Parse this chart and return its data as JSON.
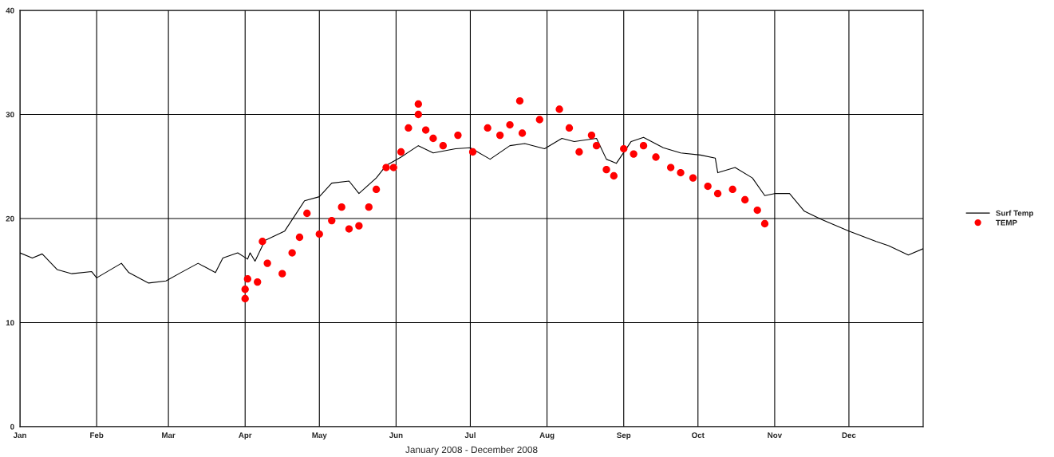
{
  "chart_data": {
    "type": "line",
    "xlabel": "January 2008 - December 2008",
    "xlim": [
      "2008-01-01",
      "2008-12-31"
    ],
    "xticks": [
      {
        "value": "2008-01-01",
        "label": "Jan"
      },
      {
        "value": "2008-02-01",
        "label": "Feb"
      },
      {
        "value": "2008-03-01",
        "label": "Mar"
      },
      {
        "value": "2008-04-01",
        "label": "Apr"
      },
      {
        "value": "2008-05-01",
        "label": "May"
      },
      {
        "value": "2008-06-01",
        "label": "Jun"
      },
      {
        "value": "2008-07-01",
        "label": "Jul"
      },
      {
        "value": "2008-08-01",
        "label": "Aug"
      },
      {
        "value": "2008-09-01",
        "label": "Sep"
      },
      {
        "value": "2008-10-01",
        "label": "Oct"
      },
      {
        "value": "2008-11-01",
        "label": "Nov"
      },
      {
        "value": "2008-12-01",
        "label": "Dec"
      }
    ],
    "ylim": [
      0,
      40
    ],
    "yticks": [
      0,
      10,
      20,
      30,
      40
    ],
    "grid": true,
    "legend": "right",
    "series": [
      {
        "name": "Surf Temp",
        "color": "#000000",
        "marker": "none",
        "line_style": "solid",
        "x": [
          "2008-01-01",
          "2008-01-06",
          "2008-01-10",
          "2008-01-16",
          "2008-01-22",
          "2008-01-30",
          "2008-02-01",
          "2008-02-11",
          "2008-02-14",
          "2008-02-22",
          "2008-02-29",
          "2008-03-06",
          "2008-03-13",
          "2008-03-20",
          "2008-03-23",
          "2008-03-29",
          "2008-04-02",
          "2008-04-03",
          "2008-04-05",
          "2008-04-09",
          "2008-04-17",
          "2008-04-25",
          "2008-05-01",
          "2008-05-06",
          "2008-05-13",
          "2008-05-17",
          "2008-05-24",
          "2008-05-28",
          "2008-06-03",
          "2008-06-10",
          "2008-06-16",
          "2008-06-25",
          "2008-07-01",
          "2008-07-09",
          "2008-07-17",
          "2008-07-23",
          "2008-07-31",
          "2008-08-07",
          "2008-08-12",
          "2008-08-21",
          "2008-08-25",
          "2008-08-29",
          "2008-09-04",
          "2008-09-09",
          "2008-09-17",
          "2008-09-24",
          "2008-10-02",
          "2008-10-08",
          "2008-10-09",
          "2008-10-16",
          "2008-10-23",
          "2008-10-28",
          "2008-11-01",
          "2008-11-07",
          "2008-11-13",
          "2008-11-20",
          "2008-12-01",
          "2008-12-12",
          "2008-12-17",
          "2008-12-25",
          "2008-12-31"
        ],
        "values": [
          16.7,
          16.2,
          16.6,
          15.1,
          14.7,
          14.9,
          14.3,
          15.7,
          14.8,
          13.8,
          14.0,
          14.8,
          15.7,
          14.8,
          16.2,
          16.7,
          16.1,
          16.7,
          15.9,
          17.9,
          18.8,
          21.7,
          22.1,
          23.4,
          23.6,
          22.4,
          23.9,
          25.1,
          25.9,
          27.0,
          26.3,
          26.7,
          26.8,
          25.7,
          27.0,
          27.2,
          26.7,
          27.7,
          27.4,
          27.7,
          25.7,
          25.3,
          27.4,
          27.8,
          26.8,
          26.3,
          26.1,
          25.8,
          24.4,
          24.9,
          23.9,
          22.2,
          22.4,
          22.4,
          20.7,
          19.9,
          18.8,
          17.8,
          17.4,
          16.5,
          17.1
        ]
      },
      {
        "name": "TEMP",
        "type": "scatter",
        "color": "#ff0000",
        "marker": "circle",
        "x": [
          "2008-04-01",
          "2008-04-01",
          "2008-04-02",
          "2008-04-06",
          "2008-04-08",
          "2008-04-10",
          "2008-04-16",
          "2008-04-20",
          "2008-04-23",
          "2008-04-26",
          "2008-05-01",
          "2008-05-06",
          "2008-05-10",
          "2008-05-13",
          "2008-05-17",
          "2008-05-21",
          "2008-05-24",
          "2008-05-28",
          "2008-05-31",
          "2008-06-03",
          "2008-06-06",
          "2008-06-10",
          "2008-06-10",
          "2008-06-13",
          "2008-06-16",
          "2008-06-20",
          "2008-06-26",
          "2008-07-02",
          "2008-07-08",
          "2008-07-13",
          "2008-07-17",
          "2008-07-21",
          "2008-07-22",
          "2008-07-29",
          "2008-08-06",
          "2008-08-10",
          "2008-08-14",
          "2008-08-19",
          "2008-08-21",
          "2008-08-25",
          "2008-08-28",
          "2008-09-01",
          "2008-09-05",
          "2008-09-09",
          "2008-09-14",
          "2008-09-20",
          "2008-09-24",
          "2008-09-29",
          "2008-10-05",
          "2008-10-09",
          "2008-10-15",
          "2008-10-20",
          "2008-10-25",
          "2008-10-28"
        ],
        "values": [
          12.3,
          13.2,
          14.2,
          13.9,
          17.8,
          15.7,
          14.7,
          16.7,
          18.2,
          20.5,
          18.5,
          19.8,
          21.1,
          19.0,
          19.3,
          21.1,
          22.8,
          24.9,
          24.9,
          26.4,
          28.7,
          30.0,
          31.0,
          28.5,
          27.7,
          27.0,
          28.0,
          26.4,
          28.7,
          28.0,
          29.0,
          31.3,
          28.2,
          29.5,
          30.5,
          28.7,
          26.4,
          28.0,
          27.0,
          24.7,
          24.1,
          26.7,
          26.2,
          27.0,
          25.9,
          24.9,
          24.4,
          23.9,
          23.1,
          22.4,
          22.8,
          21.8,
          20.8,
          19.5
        ]
      }
    ]
  }
}
